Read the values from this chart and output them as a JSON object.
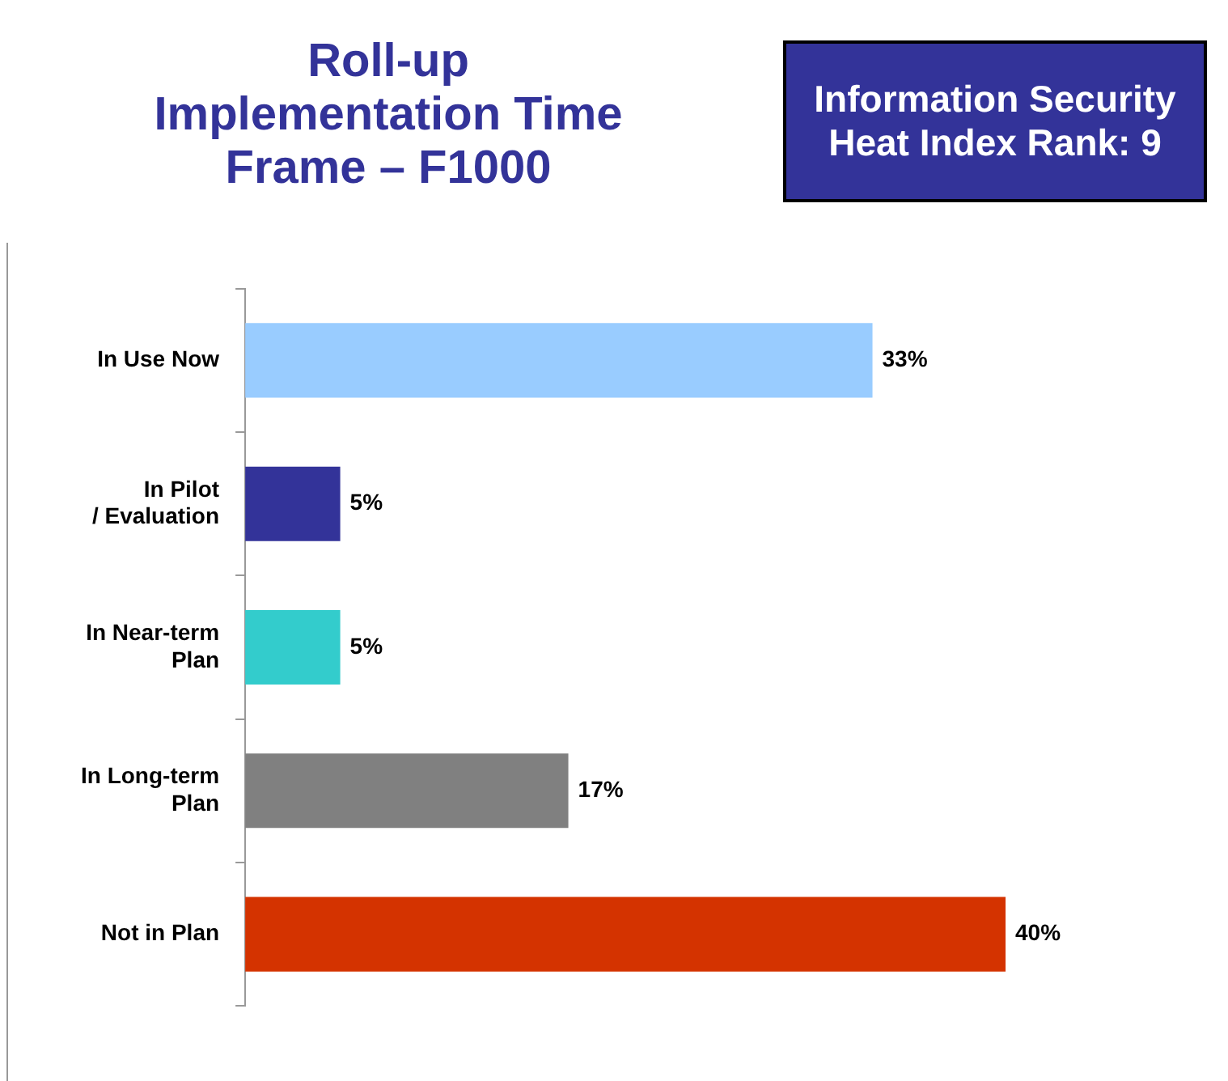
{
  "chart_data": {
    "type": "bar",
    "orientation": "horizontal",
    "title": "Roll-up Implementation Time Frame – F1000",
    "annotations": [
      "Information Security Heat Index Rank: 9"
    ],
    "categories": [
      "In Use Now",
      "In Pilot / Evaluation",
      "In Near-term Plan",
      "In Long-term Plan",
      "Not in Plan"
    ],
    "values": [
      33,
      5,
      5,
      17,
      40
    ],
    "colors": [
      "#99ccff",
      "#333399",
      "#33cccc",
      "#808080",
      "#d43300"
    ],
    "value_labels": [
      "33%",
      "5%",
      "5%",
      "17%",
      "40%"
    ],
    "legend": false,
    "grid": false
  }
}
